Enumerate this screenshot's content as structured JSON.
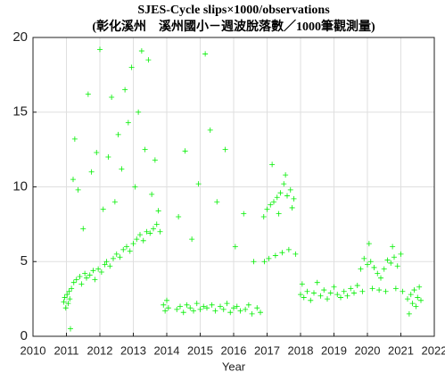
{
  "chart_data": {
    "type": "scatter",
    "title": "SJES-Cycle slips×1000/observations",
    "subtitle": "(彰化溪州　溪州國小－週波脫落數／1000筆觀測量)",
    "x_label": "Year",
    "color": "#00ee00",
    "grid": true,
    "xlim": [
      2010,
      2022
    ],
    "xticks": [
      2010,
      2011,
      2012,
      2013,
      2014,
      2015,
      2016,
      2017,
      2018,
      2019,
      2020,
      2021,
      2022
    ],
    "ylim": [
      0,
      20
    ],
    "yticks": [
      0,
      5,
      10,
      15,
      20
    ],
    "x": [
      2010.92,
      2010.95,
      2010.98,
      2011.02,
      2011.05,
      2011.08,
      2011.1,
      2011.12,
      2011.15,
      2011.2,
      2011.22,
      2011.25,
      2011.3,
      2011.35,
      2011.4,
      2011.45,
      2011.5,
      2011.55,
      2011.6,
      2011.65,
      2011.7,
      2011.75,
      2011.8,
      2011.85,
      2011.9,
      2011.95,
      2012.0,
      2012.05,
      2012.1,
      2012.15,
      2012.2,
      2012.25,
      2012.3,
      2012.35,
      2012.4,
      2012.45,
      2012.5,
      2012.55,
      2012.6,
      2012.65,
      2012.7,
      2012.75,
      2012.8,
      2012.85,
      2012.9,
      2012.95,
      2013.0,
      2013.05,
      2013.1,
      2013.15,
      2013.2,
      2013.25,
      2013.3,
      2013.35,
      2013.4,
      2013.45,
      2013.5,
      2013.55,
      2013.6,
      2013.65,
      2013.7,
      2013.75,
      2013.8,
      2013.9,
      2013.95,
      2014.0,
      2014.05,
      2014.3,
      2014.35,
      2014.4,
      2014.5,
      2014.55,
      2014.6,
      2014.7,
      2014.75,
      2014.8,
      2014.9,
      2014.95,
      2015.0,
      2015.1,
      2015.15,
      2015.2,
      2015.3,
      2015.35,
      2015.45,
      2015.5,
      2015.6,
      2015.7,
      2015.75,
      2015.8,
      2015.9,
      2016.0,
      2016.05,
      2016.1,
      2016.2,
      2016.3,
      2016.35,
      2016.45,
      2016.55,
      2016.6,
      2016.7,
      2016.8,
      2016.9,
      2016.92,
      2017.0,
      2017.05,
      2017.1,
      2017.15,
      2017.2,
      2017.25,
      2017.3,
      2017.35,
      2017.4,
      2017.45,
      2017.5,
      2017.55,
      2017.6,
      2017.65,
      2017.7,
      2017.75,
      2017.8,
      2017.85,
      2018.0,
      2018.05,
      2018.1,
      2018.2,
      2018.3,
      2018.4,
      2018.5,
      2018.6,
      2018.7,
      2018.8,
      2018.9,
      2019.0,
      2019.1,
      2019.2,
      2019.3,
      2019.4,
      2019.5,
      2019.6,
      2019.7,
      2019.8,
      2019.85,
      2019.9,
      2020.0,
      2020.05,
      2020.1,
      2020.15,
      2020.2,
      2020.3,
      2020.35,
      2020.4,
      2020.5,
      2020.55,
      2020.6,
      2020.7,
      2020.75,
      2020.8,
      2020.85,
      2020.9,
      2021.0,
      2021.05,
      2021.2,
      2021.25,
      2021.3,
      2021.35,
      2021.4,
      2021.45,
      2021.5,
      2021.55,
      2021.6
    ],
    "values": [
      2.3,
      2.6,
      1.9,
      2.8,
      2.2,
      3.0,
      2.5,
      0.5,
      3.2,
      10.5,
      3.6,
      13.2,
      3.8,
      9.8,
      4.0,
      3.5,
      7.2,
      4.2,
      3.9,
      16.2,
      4.1,
      11.0,
      4.4,
      3.8,
      12.3,
      4.5,
      19.2,
      4.3,
      8.5,
      4.8,
      5.0,
      12.0,
      4.7,
      16.0,
      5.2,
      9.0,
      5.5,
      13.5,
      5.3,
      11.2,
      5.8,
      16.5,
      6.0,
      14.3,
      5.7,
      18.0,
      6.2,
      10.0,
      6.5,
      15.0,
      6.8,
      19.1,
      6.4,
      12.5,
      7.0,
      18.5,
      6.9,
      9.5,
      7.2,
      11.8,
      7.5,
      8.4,
      7.0,
      2.1,
      1.7,
      2.4,
      1.9,
      1.8,
      8.0,
      2.0,
      1.6,
      12.4,
      2.1,
      1.9,
      6.5,
      1.7,
      2.2,
      10.2,
      1.8,
      2.0,
      18.9,
      1.9,
      13.8,
      2.1,
      1.7,
      9.0,
      2.0,
      1.8,
      12.5,
      2.2,
      1.6,
      1.9,
      6.0,
      2.0,
      1.7,
      8.2,
      1.8,
      2.1,
      1.5,
      5.0,
      1.9,
      1.6,
      8.0,
      5.0,
      8.5,
      5.2,
      8.8,
      11.5,
      9.0,
      5.4,
      9.3,
      8.2,
      9.6,
      5.6,
      10.2,
      10.8,
      9.4,
      5.8,
      9.8,
      8.6,
      9.2,
      5.5,
      2.8,
      3.5,
      2.6,
      3.0,
      2.4,
      2.9,
      3.6,
      2.7,
      3.1,
      2.5,
      2.9,
      3.3,
      2.8,
      2.6,
      3.0,
      2.7,
      3.2,
      2.9,
      3.4,
      4.5,
      3.0,
      5.2,
      4.8,
      6.2,
      5.0,
      3.2,
      4.6,
      4.2,
      3.1,
      3.9,
      4.5,
      3.0,
      5.1,
      4.9,
      6.0,
      5.3,
      3.2,
      4.7,
      5.5,
      3.0,
      2.5,
      1.5,
      2.8,
      2.2,
      3.1,
      2.0,
      2.6,
      3.3,
      2.4
    ]
  }
}
